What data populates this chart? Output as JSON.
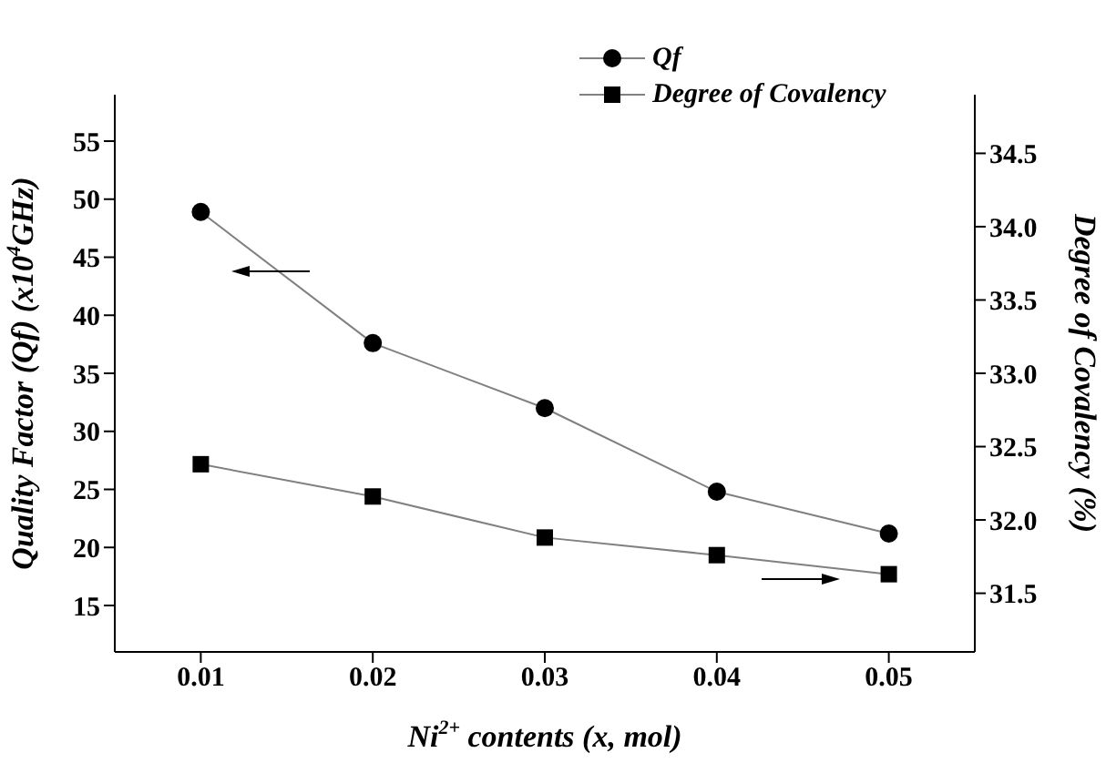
{
  "chart_data": {
    "type": "line",
    "xlabel": "Ni$^{2+}$ contents (x, mol)",
    "ylabel": "Quality Factor (Qf) (x10$^{4}$GHz)",
    "y2label": "Degree of Covalency (%)",
    "x": [
      0.01,
      0.02,
      0.03,
      0.04,
      0.05
    ],
    "series": [
      {
        "name": "Qf",
        "color": "#000000",
        "marker": "circle",
        "values": [
          48.9,
          37.6,
          32.0,
          24.8,
          21.2
        ]
      },
      {
        "name": "Degree of Covalency",
        "color": "#000000",
        "marker": "square",
        "axis": "y2",
        "values": [
          32.38,
          32.16,
          31.88,
          31.76,
          31.63
        ]
      }
    ],
    "xlim": [
      0.005,
      0.055
    ],
    "xticks": [
      {
        "value": 0.01,
        "label": "0.01"
      },
      {
        "value": 0.02,
        "label": "0.02"
      },
      {
        "value": 0.03,
        "label": "0.03"
      },
      {
        "value": 0.04,
        "label": "0.04"
      },
      {
        "value": 0.05,
        "label": "0.05"
      }
    ],
    "ylim": [
      11,
      59
    ],
    "yticks": [
      15,
      20,
      25,
      30,
      35,
      40,
      45,
      50,
      55
    ],
    "y2lim": [
      31.1,
      34.9
    ],
    "y2ticks": [
      {
        "value": 31.5,
        "label": "31.5"
      },
      {
        "value": 32,
        "label": "32.0"
      },
      {
        "value": 32.5,
        "label": "32.5"
      },
      {
        "value": 33,
        "label": "33.0"
      },
      {
        "value": 33.5,
        "label": "33.5"
      },
      {
        "value": 34,
        "label": "34.0"
      },
      {
        "value": 34.5,
        "label": "34.5"
      }
    ],
    "grid": false,
    "legend": "top right",
    "line_style": "solid"
  }
}
